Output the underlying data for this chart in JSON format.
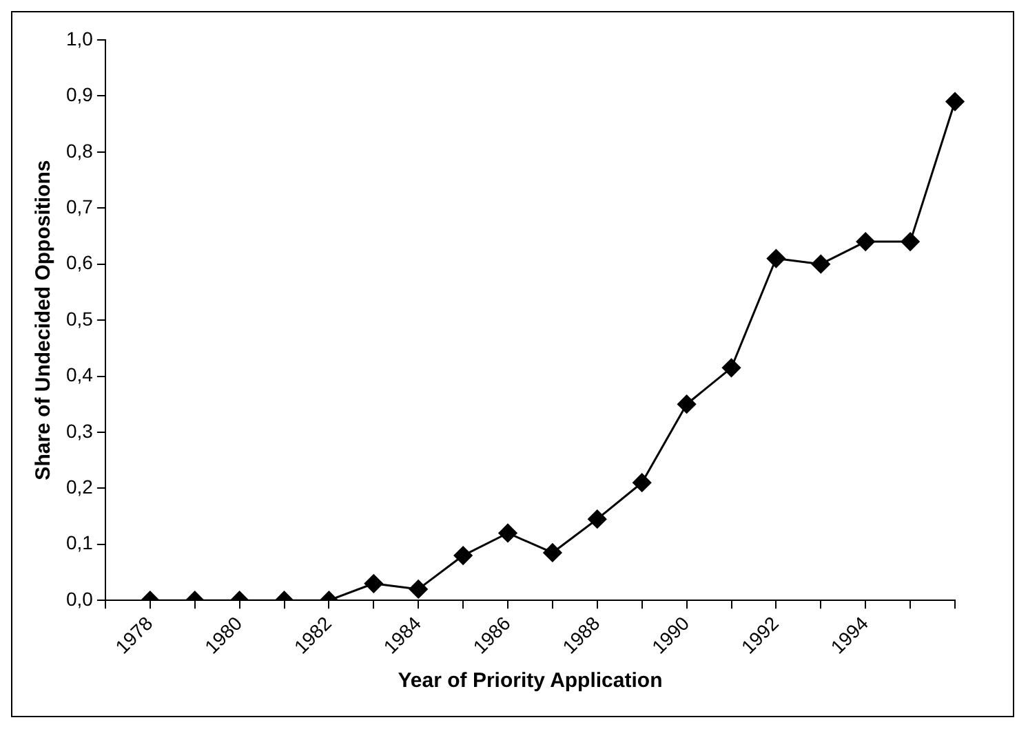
{
  "chart_data": {
    "type": "line",
    "xlabel": "Year of Priority Application",
    "ylabel": "Share of Undecided Oppositions",
    "categories": [
      null,
      "1978",
      null,
      "1980",
      null,
      "1982",
      null,
      "1984",
      null,
      "1986",
      null,
      "1988",
      null,
      "1990",
      null,
      "1992",
      null,
      "1994",
      null,
      null
    ],
    "series": [
      {
        "color": "#000000",
        "values": [
          null,
          0,
          0,
          0,
          0,
          0,
          0.03,
          0.02,
          0.08,
          0.12,
          0.085,
          0.145,
          0.21,
          0.35,
          0.415,
          0.61,
          0.6,
          0.64,
          0.64,
          0.89
        ]
      }
    ],
    "ylim": [
      0,
      1
    ],
    "yticks": [
      {
        "value": 0,
        "label": "0,0"
      },
      {
        "value": 0.1,
        "label": "0,1"
      },
      {
        "value": 0.2,
        "label": "0,2"
      },
      {
        "value": 0.3,
        "label": "0,3"
      },
      {
        "value": 0.4,
        "label": "0,4"
      },
      {
        "value": 0.5,
        "label": "0,5"
      },
      {
        "value": 0.6,
        "label": "0,6"
      },
      {
        "value": 0.7,
        "label": "0,7"
      },
      {
        "value": 0.8,
        "label": "0,8"
      },
      {
        "value": 0.9,
        "label": "0,9"
      },
      {
        "value": 1,
        "label": "1,0"
      }
    ],
    "grid": false,
    "legend": false,
    "marker": "diamond",
    "line_style": "solid"
  }
}
